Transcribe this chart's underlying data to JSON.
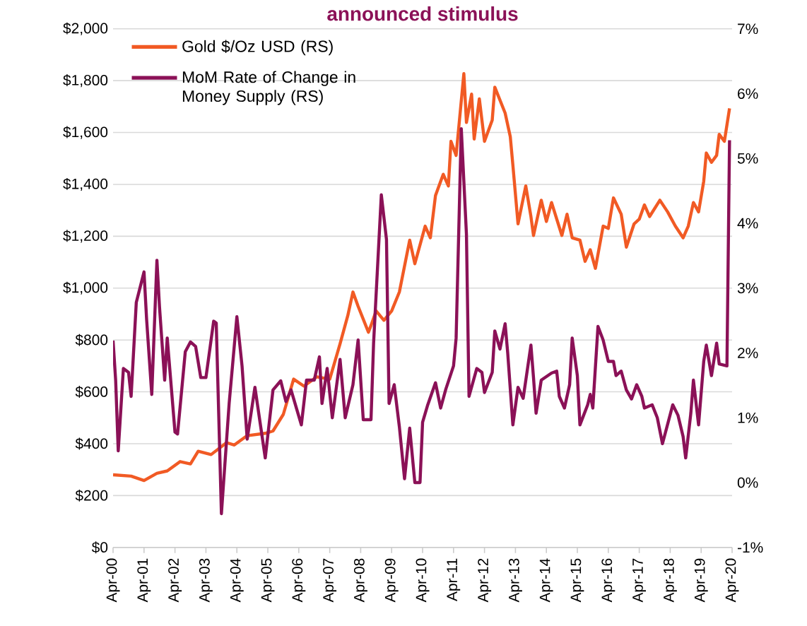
{
  "chart_data": {
    "type": "line",
    "title": "announced stimulus",
    "xlim": [
      "2000-04",
      "2020-04"
    ],
    "xticks": [
      {
        "value": "2000-04",
        "label": "Apr-00"
      },
      {
        "value": "2001-04",
        "label": "Apr-01"
      },
      {
        "value": "2002-04",
        "label": "Apr-02"
      },
      {
        "value": "2003-04",
        "label": "Apr-03"
      },
      {
        "value": "2004-04",
        "label": "Apr-04"
      },
      {
        "value": "2005-04",
        "label": "Apr-05"
      },
      {
        "value": "2006-04",
        "label": "Apr-06"
      },
      {
        "value": "2007-04",
        "label": "Apr-07"
      },
      {
        "value": "2008-04",
        "label": "Apr-08"
      },
      {
        "value": "2009-04",
        "label": "Apr-09"
      },
      {
        "value": "2010-04",
        "label": "Apr-10"
      },
      {
        "value": "2011-04",
        "label": "Apr-11"
      },
      {
        "value": "2012-04",
        "label": "Apr-12"
      },
      {
        "value": "2013-04",
        "label": "Apr-13"
      },
      {
        "value": "2014-04",
        "label": "Apr-14"
      },
      {
        "value": "2015-04",
        "label": "Apr-15"
      },
      {
        "value": "2016-04",
        "label": "Apr-16"
      },
      {
        "value": "2017-04",
        "label": "Apr-17"
      },
      {
        "value": "2018-04",
        "label": "Apr-18"
      },
      {
        "value": "2019-04",
        "label": "Apr-19"
      },
      {
        "value": "2020-04",
        "label": "Apr-20"
      }
    ],
    "ylim": [
      0,
      2000
    ],
    "yticks": [
      {
        "value": 0,
        "label": "$0"
      },
      {
        "value": 200,
        "label": "$200"
      },
      {
        "value": 400,
        "label": "$400"
      },
      {
        "value": 600,
        "label": "$600"
      },
      {
        "value": 800,
        "label": "$800"
      },
      {
        "value": 1000,
        "label": "$1,000"
      },
      {
        "value": 1200,
        "label": "$1,200"
      },
      {
        "value": 1400,
        "label": "$1,400"
      },
      {
        "value": 1600,
        "label": "$1,600"
      },
      {
        "value": 1800,
        "label": "$1,800"
      },
      {
        "value": 2000,
        "label": "$2,000"
      }
    ],
    "y2lim": [
      -1,
      7
    ],
    "y2ticks": [
      {
        "value": -1,
        "label": "-1%"
      },
      {
        "value": 0,
        "label": "0%"
      },
      {
        "value": 1,
        "label": "1%"
      },
      {
        "value": 2,
        "label": "2%"
      },
      {
        "value": 3,
        "label": "3%"
      },
      {
        "value": 4,
        "label": "4%"
      },
      {
        "value": 5,
        "label": "5%"
      },
      {
        "value": 6,
        "label": "6%"
      },
      {
        "value": 7,
        "label": "7%"
      }
    ],
    "grid": "y",
    "legend": "top left",
    "marker": "none",
    "line_style": "solid",
    "series": [
      {
        "name": "Gold $/Oz USD (RS)",
        "color": "#f15a24",
        "x": [
          "2000-04",
          "2000-11",
          "2001-04",
          "2001-09",
          "2002-01",
          "2002-06",
          "2002-10",
          "2003-01",
          "2003-06",
          "2003-12",
          "2004-03",
          "2004-08",
          "2005-03",
          "2005-06",
          "2005-10",
          "2006-02",
          "2006-06",
          "2006-11",
          "2007-04",
          "2007-08",
          "2007-11",
          "2008-01",
          "2008-03",
          "2008-07",
          "2008-08",
          "2008-10",
          "2009-01",
          "2009-04",
          "2009-07",
          "2009-11",
          "2010-01",
          "2010-05",
          "2010-07",
          "2010-09",
          "2010-12",
          "2011-02",
          "2011-03",
          "2011-05",
          "2011-08",
          "2011-09",
          "2011-11",
          "2011-12",
          "2012-02",
          "2012-04",
          "2012-07",
          "2012-08",
          "2012-12",
          "2013-02",
          "2013-03",
          "2013-05",
          "2013-08",
          "2013-10",
          "2013-11",
          "2014-02",
          "2014-04",
          "2014-06",
          "2014-10",
          "2014-12",
          "2015-02",
          "2015-05",
          "2015-07",
          "2015-09",
          "2015-11",
          "2016-02",
          "2016-04",
          "2016-06",
          "2016-09",
          "2016-11",
          "2017-02",
          "2017-04",
          "2017-06",
          "2017-08",
          "2017-12",
          "2018-03",
          "2018-06",
          "2018-09",
          "2018-11",
          "2019-01",
          "2019-03",
          "2019-05",
          "2019-06",
          "2019-08",
          "2019-10",
          "2019-11",
          "2020-01",
          "2020-03"
        ],
        "values": [
          280,
          275,
          258,
          286,
          295,
          331,
          322,
          371,
          358,
          404,
          395,
          431,
          440,
          449,
          513,
          649,
          622,
          658,
          649,
          785,
          894,
          985,
          930,
          830,
          856,
          912,
          876,
          912,
          985,
          1185,
          1094,
          1239,
          1194,
          1357,
          1439,
          1394,
          1566,
          1512,
          1827,
          1639,
          1748,
          1575,
          1730,
          1566,
          1648,
          1775,
          1675,
          1584,
          1475,
          1248,
          1394,
          1276,
          1203,
          1339,
          1257,
          1330,
          1203,
          1285,
          1194,
          1185,
          1103,
          1148,
          1076,
          1239,
          1230,
          1348,
          1285,
          1158,
          1248,
          1266,
          1321,
          1276,
          1339,
          1294,
          1239,
          1194,
          1239,
          1330,
          1294,
          1412,
          1521,
          1485,
          1512,
          1593,
          1566,
          1693
        ]
      },
      {
        "name": "MoM Rate of Change in Money Supply (RS)",
        "color": "#8b1157",
        "axis": "y2",
        "x": [
          "2000-04",
          "2000-05",
          "2000-06",
          "2000-08",
          "2000-10",
          "2000-11",
          "2001-01",
          "2001-04",
          "2001-05",
          "2001-07",
          "2001-09",
          "2001-10",
          "2001-12",
          "2002-01",
          "2002-04",
          "2002-05",
          "2002-08",
          "2002-10",
          "2002-12",
          "2003-02",
          "2003-04",
          "2003-07",
          "2003-08",
          "2003-10",
          "2004-01",
          "2004-04",
          "2004-06",
          "2004-08",
          "2004-11",
          "2005-03",
          "2005-06",
          "2005-09",
          "2005-11",
          "2006-01",
          "2006-05",
          "2006-07",
          "2006-10",
          "2006-12",
          "2007-01",
          "2007-03",
          "2007-05",
          "2007-08",
          "2007-10",
          "2008-01",
          "2008-03",
          "2008-05",
          "2008-08",
          "2008-09",
          "2008-12",
          "2009-02",
          "2009-03",
          "2009-05",
          "2009-07",
          "2009-09",
          "2009-11",
          "2010-01",
          "2010-03",
          "2010-04",
          "2010-06",
          "2010-09",
          "2010-11",
          "2011-01",
          "2011-04",
          "2011-05",
          "2011-07",
          "2011-09",
          "2011-10",
          "2012-01",
          "2012-03",
          "2012-04",
          "2012-07",
          "2012-08",
          "2012-10",
          "2012-12",
          "2013-01",
          "2013-03",
          "2013-05",
          "2013-07",
          "2013-10",
          "2013-11",
          "2013-12",
          "2014-02",
          "2014-06",
          "2014-08",
          "2014-09",
          "2014-11",
          "2015-01",
          "2015-02",
          "2015-04",
          "2015-05",
          "2015-08",
          "2015-09",
          "2015-10",
          "2015-12",
          "2016-02",
          "2016-04",
          "2016-06",
          "2016-07",
          "2016-09",
          "2016-11",
          "2017-01",
          "2017-03",
          "2017-05",
          "2017-06",
          "2017-09",
          "2017-11",
          "2018-01",
          "2018-02",
          "2018-05",
          "2018-07",
          "2018-09",
          "2018-10",
          "2018-12",
          "2019-01",
          "2019-03",
          "2019-05",
          "2019-06",
          "2019-08",
          "2019-10",
          "2019-11",
          "2020-02",
          "2020-03"
        ],
        "values": [
          2.19,
          1.58,
          0.49,
          1.76,
          1.7,
          1.33,
          2.78,
          3.25,
          2.52,
          1.36,
          3.43,
          2.71,
          1.58,
          2.23,
          0.78,
          0.75,
          2.02,
          2.17,
          2.1,
          1.62,
          1.62,
          2.49,
          2.46,
          -0.48,
          1.22,
          2.56,
          1.8,
          0.67,
          1.47,
          0.38,
          1.43,
          1.57,
          1.25,
          1.43,
          0.89,
          1.58,
          1.58,
          1.94,
          1.22,
          1.76,
          1.0,
          1.9,
          1.0,
          1.51,
          2.2,
          0.97,
          0.97,
          2.15,
          4.44,
          3.75,
          1.22,
          1.51,
          0.86,
          0.06,
          0.84,
          0.0,
          0.0,
          0.93,
          1.2,
          1.54,
          1.15,
          1.44,
          1.8,
          2.23,
          5.46,
          3.83,
          1.33,
          1.76,
          1.7,
          1.39,
          1.7,
          2.34,
          2.06,
          2.45,
          2.0,
          0.89,
          1.47,
          1.3,
          2.12,
          1.62,
          1.07,
          1.58,
          1.69,
          1.72,
          1.33,
          1.15,
          1.51,
          2.23,
          1.65,
          0.89,
          1.2,
          1.36,
          1.15,
          2.41,
          2.2,
          1.87,
          1.87,
          1.65,
          1.72,
          1.43,
          1.29,
          1.51,
          1.33,
          1.15,
          1.2,
          1.0,
          0.6,
          0.75,
          1.2,
          1.04,
          0.71,
          0.38,
          1.07,
          1.58,
          0.89,
          1.87,
          2.12,
          1.65,
          2.15,
          1.83,
          1.8,
          5.28
        ]
      }
    ]
  }
}
